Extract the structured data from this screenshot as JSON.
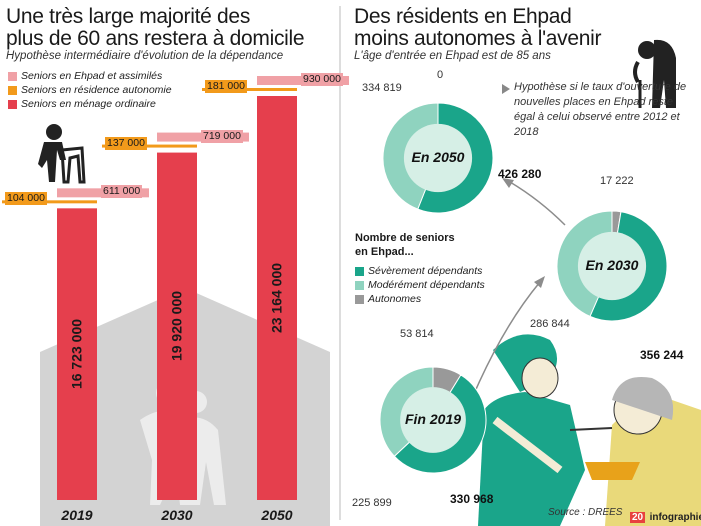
{
  "left": {
    "title_line1": "Une très large majorité des",
    "title_line2": "plus de 60 ans restera à domicile",
    "subtitle": "Hypothèse intermédiaire d'évolution de la dépendance",
    "legend": [
      {
        "label": "Seniors en Ehpad et assimilés",
        "color": "#f0a1a6"
      },
      {
        "label": "Seniors en résidence autonomie",
        "color": "#f29a1b"
      },
      {
        "label": "Seniors en ménage ordinaire",
        "color": "#e53f4d"
      }
    ]
  },
  "right": {
    "title_line1": "Des résidents en Ehpad",
    "title_line2": "moins autonomes à l'avenir",
    "subtitle": "L'âge d'entrée en Ehpad est de 85 ans",
    "note": "Hypothèse si le taux d'ouverture de nouvelles places en Ehpad reste égal à celui observé entre 2012 et 2018",
    "legend_title_line1": "Nombre de seniors",
    "legend_title_line2": "en Ehpad...",
    "legend": [
      {
        "label": "Sévèrement dépendants",
        "color": "#1aa58a"
      },
      {
        "label": "Modérément dépendants",
        "color": "#8fd3bf"
      },
      {
        "label": "Autonomes",
        "color": "#999999"
      }
    ]
  },
  "source": "Source : DREES",
  "logo": "infographie",
  "logo_mark": "20",
  "chart_data": [
    {
      "type": "bar",
      "categories": [
        "2019",
        "2030",
        "2050"
      ],
      "series": [
        {
          "name": "Seniors en ménage ordinaire",
          "values": [
            16723000,
            19920000,
            23164000
          ],
          "labels": [
            "16 723 000",
            "19 920 000",
            "23 164 000"
          ]
        },
        {
          "name": "Seniors en résidence autonomie",
          "values": [
            104000,
            137000,
            181000
          ],
          "labels": [
            "104 000",
            "137 000",
            "181 000"
          ]
        },
        {
          "name": "Seniors en Ehpad et assimilés",
          "values": [
            611000,
            719000,
            930000
          ],
          "labels": [
            "611 000",
            "719 000",
            "930 000"
          ]
        }
      ]
    },
    {
      "type": "pie",
      "title": "Fin 2019",
      "categories": [
        "Sévèrement dépendants",
        "Modérément dépendants",
        "Autonomes"
      ],
      "values": [
        330968,
        225899,
        53814
      ],
      "labels": [
        "330 968",
        "225 899",
        "53 814"
      ]
    },
    {
      "type": "pie",
      "title": "En 2030",
      "categories": [
        "Sévèrement dépendants",
        "Modérément dépendants",
        "Autonomes"
      ],
      "values": [
        356244,
        286844,
        17222
      ],
      "labels": [
        "356 244",
        "286 844",
        "17 222"
      ]
    },
    {
      "type": "pie",
      "title": "En 2050",
      "categories": [
        "Sévèrement dépendants",
        "Modérément dépendants",
        "Autonomes"
      ],
      "values": [
        426280,
        334819,
        0
      ],
      "labels": [
        "426 280",
        "334 819",
        "0"
      ]
    }
  ]
}
